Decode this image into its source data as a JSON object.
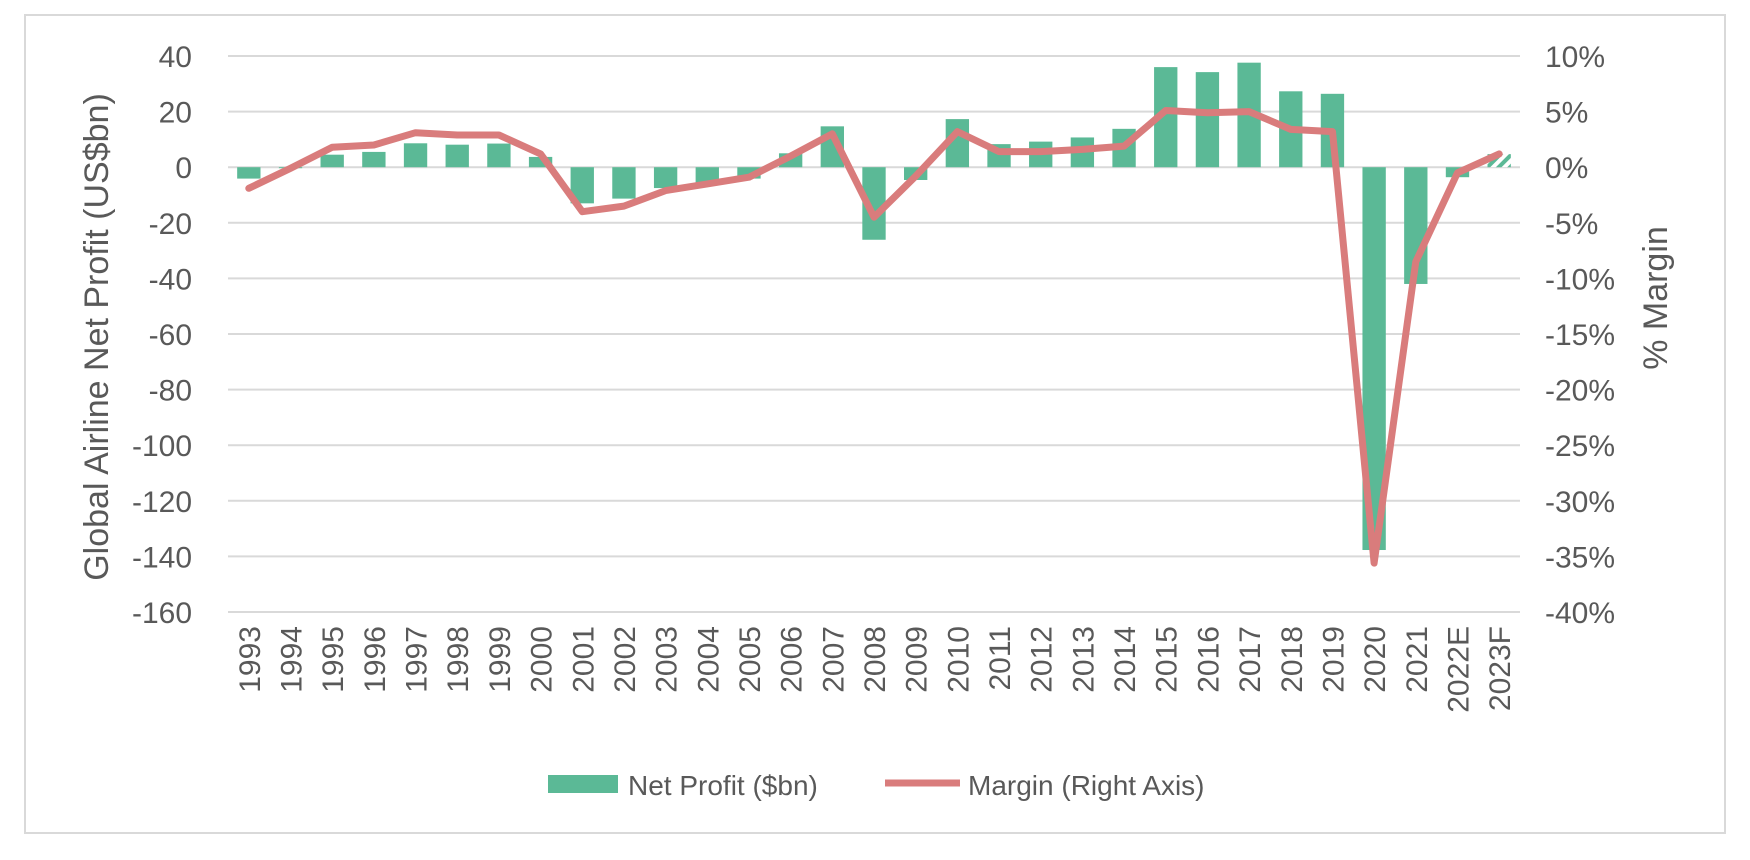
{
  "chart_data": {
    "type": "bar",
    "title": "",
    "categories": [
      "1993",
      "1994",
      "1995",
      "1996",
      "1997",
      "1998",
      "1999",
      "2000",
      "2001",
      "2002",
      "2003",
      "2004",
      "2005",
      "2006",
      "2007",
      "2008",
      "2009",
      "2010",
      "2011",
      "2012",
      "2013",
      "2014",
      "2015",
      "2016",
      "2017",
      "2018",
      "2019",
      "2020",
      "2021",
      "2022E",
      "2023F"
    ],
    "series": [
      {
        "name": "Net Profit ($bn)",
        "type": "bar",
        "axis": "left",
        "color": "#5bb996",
        "values": [
          -4.1,
          -0.3,
          4.5,
          5.5,
          8.6,
          8.1,
          8.5,
          3.7,
          -13.0,
          -11.3,
          -7.5,
          -5.6,
          -4.1,
          5.0,
          14.7,
          -26.1,
          -4.6,
          17.3,
          8.3,
          9.2,
          10.7,
          13.8,
          36.0,
          34.2,
          37.6,
          27.3,
          26.4,
          -137.7,
          -42.0,
          -3.6,
          4.7
        ],
        "hatched_categories": [
          "2023F"
        ]
      },
      {
        "name": "Margin (Right Axis)",
        "type": "line",
        "axis": "right",
        "color": "#d97c7c",
        "values": [
          -1.9,
          -0.1,
          1.8,
          2.0,
          3.1,
          2.9,
          2.9,
          1.2,
          -4.0,
          -3.5,
          -2.1,
          -1.5,
          -0.9,
          1.0,
          3.0,
          -4.5,
          -0.8,
          3.2,
          1.4,
          1.4,
          1.6,
          1.9,
          5.1,
          4.9,
          5.0,
          3.4,
          3.2,
          -35.6,
          -8.5,
          -0.5,
          1.2
        ]
      }
    ],
    "y_left": {
      "label": "Global Airline Net Profit (US$bn)",
      "ylim": [
        -160,
        40
      ],
      "ticks": [
        "40",
        "20",
        "0",
        "-20",
        "-40",
        "-60",
        "-80",
        "-100",
        "-120",
        "-140",
        "-160"
      ]
    },
    "y_right": {
      "label": "% Margin",
      "ylim": [
        -40,
        10
      ],
      "ticks": [
        "10%",
        "5%",
        "0%",
        "-5%",
        "-10%",
        "-15%",
        "-20%",
        "-25%",
        "-30%",
        "-35%",
        "-40%"
      ]
    },
    "grid": true,
    "legend": {
      "position": "bottom",
      "entries": [
        "Net Profit ($bn)",
        "Margin (Right Axis)"
      ]
    }
  }
}
